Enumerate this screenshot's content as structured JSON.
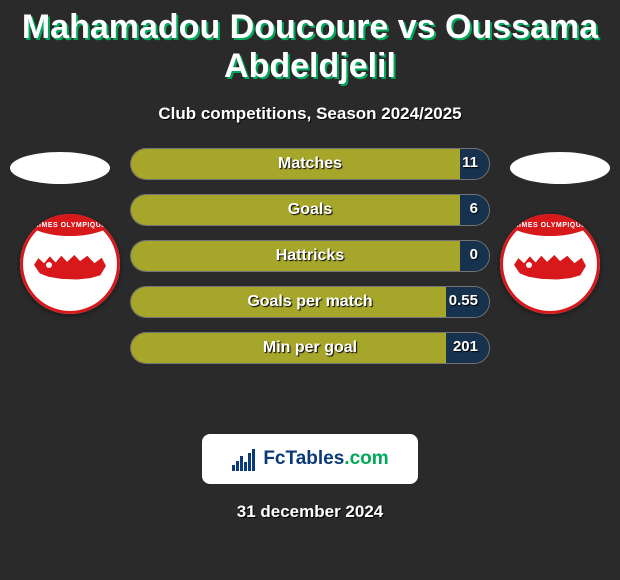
{
  "title": "Mahamadou Doucoure vs Oussama Abdeldjelil",
  "title_fontsize": 34,
  "title_color": "#ffffff",
  "title_shadow": "#00a859",
  "subtitle": "Club competitions, Season 2024/2025",
  "subtitle_fontsize": 17,
  "background_color": "#2a2a2a",
  "ellipse_color": "#ffffff",
  "badge": {
    "ring_color": "#d7191c",
    "text": "NIMES OLYMPIQUE",
    "text_fontsize": 7
  },
  "bars": {
    "height": 32,
    "gap": 14,
    "track_border": "#ffffff59",
    "left_color": "#a6a62a",
    "right_color": "#16324f",
    "empty_color": "#2a2a2a",
    "label_color": "#ffffff",
    "label_fontsize": 16,
    "value_fontsize": 15,
    "items": [
      {
        "label": "Matches",
        "left_val": "",
        "left_pct": 92,
        "right_val": "11",
        "right_pct": 8
      },
      {
        "label": "Goals",
        "left_val": "",
        "left_pct": 92,
        "right_val": "6",
        "right_pct": 8
      },
      {
        "label": "Hattricks",
        "left_val": "",
        "left_pct": 92,
        "right_val": "0",
        "right_pct": 8
      },
      {
        "label": "Goals per match",
        "left_val": "",
        "left_pct": 88,
        "right_val": "0.55",
        "right_pct": 12
      },
      {
        "label": "Min per goal",
        "left_val": "",
        "left_pct": 88,
        "right_val": "201",
        "right_pct": 12
      }
    ]
  },
  "logo": {
    "brand_left": "Fc",
    "brand_mid": "Tables",
    "brand_right": ".com",
    "fontsize": 19,
    "chart_bars": [
      6,
      10,
      15,
      9,
      18,
      22
    ],
    "chart_color": "#0b3a7a"
  },
  "date": "31 december 2024",
  "date_fontsize": 17
}
